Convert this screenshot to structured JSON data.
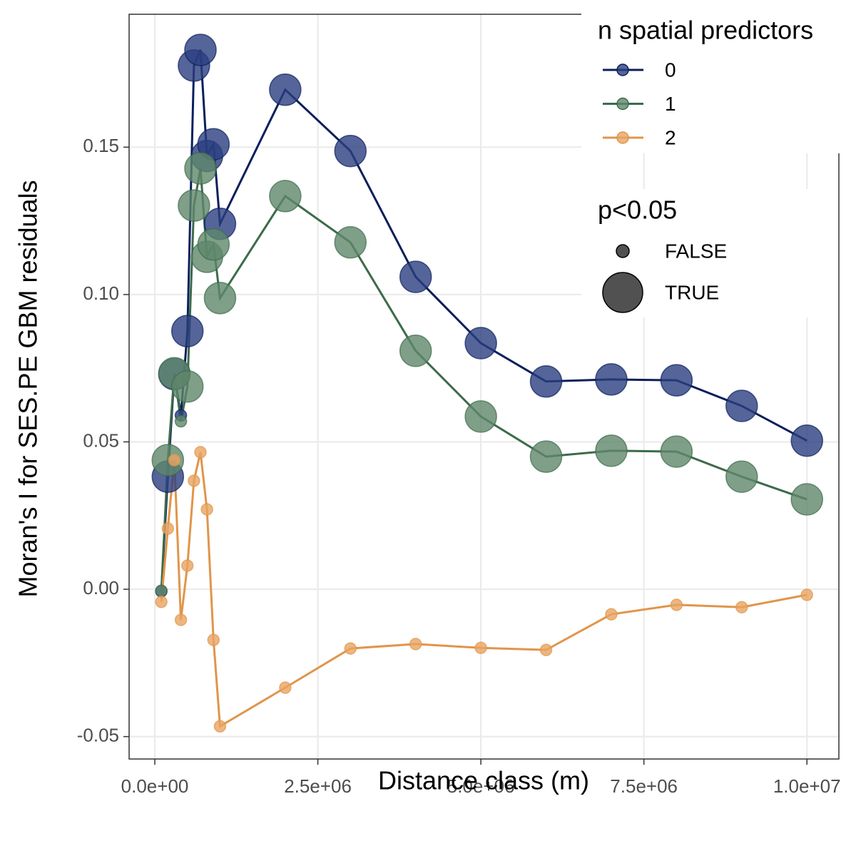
{
  "chart_data": {
    "type": "line",
    "x_label": "Distance class (m)",
    "y_label": "Moran's I for SES.PE GBM residuals",
    "x": [
      100000,
      200000,
      300000,
      400000,
      500000,
      600000,
      700000,
      800000,
      900000,
      1000000,
      2000000,
      3000000,
      4000000,
      5000000,
      6000000,
      7000000,
      8000000,
      9000000,
      10000000
    ],
    "series": [
      {
        "name": "0",
        "color": "#0b1f5c",
        "fill": "#2b3f7f",
        "values": [
          -0.0007,
          0.0382,
          0.073,
          0.059,
          0.0876,
          0.1777,
          0.183,
          0.147,
          0.151,
          0.124,
          0.1695,
          0.1487,
          0.106,
          0.0835,
          0.0705,
          0.0712,
          0.0709,
          0.0622,
          0.0504
        ],
        "significant": [
          false,
          true,
          true,
          false,
          true,
          true,
          true,
          true,
          true,
          true,
          true,
          true,
          true,
          true,
          true,
          true,
          true,
          true,
          true
        ]
      },
      {
        "name": "1",
        "color": "#3d6b4a",
        "fill": "#5f876a",
        "values": [
          -0.0005,
          0.0438,
          0.0733,
          0.057,
          0.0688,
          0.1302,
          0.1428,
          0.1128,
          0.117,
          0.0988,
          0.1334,
          0.1177,
          0.0809,
          0.0586,
          0.045,
          0.047,
          0.0467,
          0.0382,
          0.0305
        ],
        "significant": [
          false,
          true,
          true,
          false,
          true,
          true,
          true,
          true,
          true,
          true,
          true,
          true,
          true,
          true,
          true,
          true,
          true,
          true,
          true
        ]
      },
      {
        "name": "2",
        "color": "#e0954a",
        "fill": "#e8a462",
        "values": [
          -0.0043,
          0.0206,
          0.0438,
          -0.0104,
          0.008,
          0.0368,
          0.0465,
          0.0271,
          -0.0172,
          -0.0465,
          -0.0334,
          -0.0201,
          -0.0186,
          -0.0199,
          -0.0206,
          -0.0085,
          -0.0053,
          -0.0061,
          -0.0019
        ],
        "significant": [
          false,
          false,
          false,
          false,
          false,
          false,
          false,
          false,
          false,
          false,
          false,
          false,
          false,
          false,
          false,
          false,
          false,
          false,
          false
        ]
      }
    ],
    "legend_title": "n spatial predictors",
    "size_legend": {
      "title": "p<0.05",
      "labels": [
        "FALSE",
        "TRUE"
      ]
    },
    "xlim": [
      -394000,
      10490000
    ],
    "ylim": [
      -0.0576,
      0.1951
    ],
    "xticks": [
      {
        "value": 0,
        "label": "0.0e+00"
      },
      {
        "value": 2500000,
        "label": "2.5e+06"
      },
      {
        "value": 5000000,
        "label": "5.0e+06"
      },
      {
        "value": 7500000,
        "label": "7.5e+06"
      },
      {
        "value": 10000000,
        "label": "1.0e+07"
      }
    ],
    "yticks": [
      -0.05,
      {
        "value": 0,
        "label": "0.00"
      },
      0.05,
      {
        "value": 0.1,
        "label": "0.10"
      },
      0.15
    ],
    "grid": true,
    "legend_position": "top-right"
  }
}
